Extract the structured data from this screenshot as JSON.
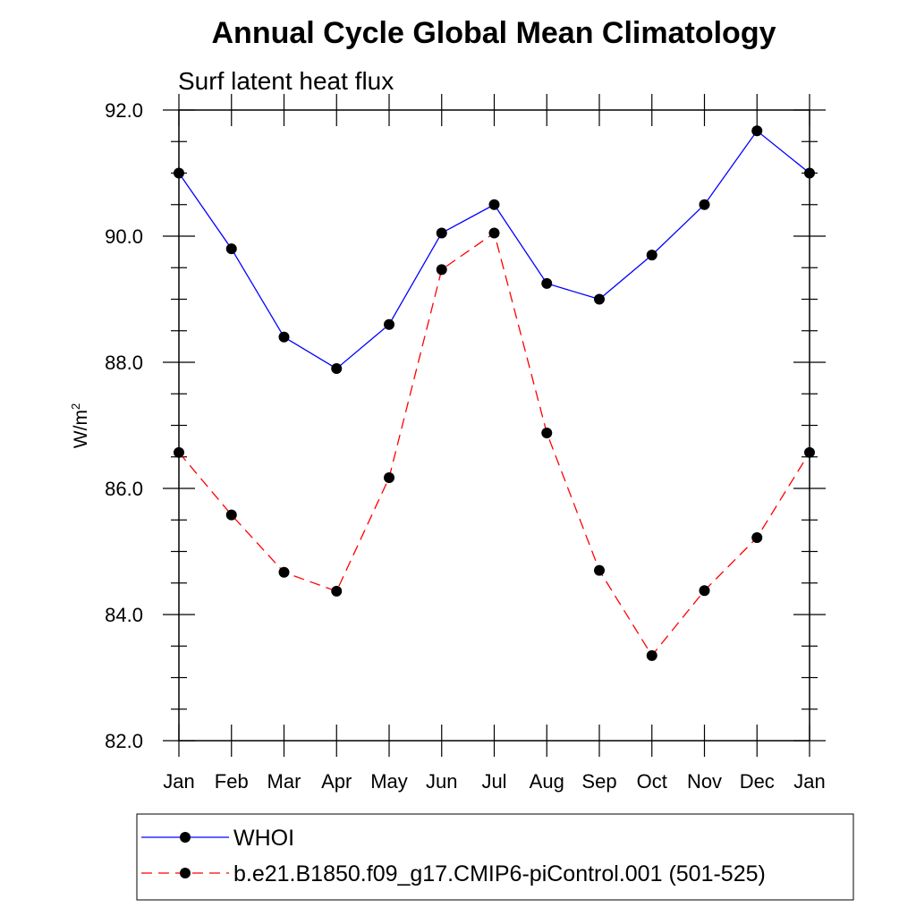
{
  "chart_data": {
    "type": "line",
    "title": "Annual Cycle Global Mean Climatology",
    "subtitle": "Surf latent heat flux",
    "xlabel": "",
    "ylabel": "W/m",
    "ylabel_superscript": "2",
    "categories": [
      "Jan",
      "Feb",
      "Mar",
      "Apr",
      "May",
      "Jun",
      "Jul",
      "Aug",
      "Sep",
      "Oct",
      "Nov",
      "Dec",
      "Jan"
    ],
    "ylim": [
      82.0,
      92.0
    ],
    "yticks": [
      "82.0",
      "84.0",
      "86.0",
      "88.0",
      "90.0",
      "92.0"
    ],
    "legend_placement": "bottom",
    "grid": false,
    "series": [
      {
        "name": "WHOI",
        "color": "#0000ff",
        "style": "solid",
        "values": [
          91.0,
          89.8,
          88.4,
          87.9,
          88.6,
          90.05,
          90.5,
          89.25,
          89.0,
          89.7,
          90.5,
          91.67,
          91.0
        ]
      },
      {
        "name": "b.e21.B1850.f09_g17.CMIP6-piControl.001 (501-525)",
        "color": "#ff0000",
        "style": "dashed",
        "values": [
          86.57,
          85.58,
          84.67,
          84.37,
          86.17,
          89.47,
          90.05,
          86.88,
          84.7,
          83.35,
          84.38,
          85.22,
          86.57
        ]
      }
    ]
  }
}
